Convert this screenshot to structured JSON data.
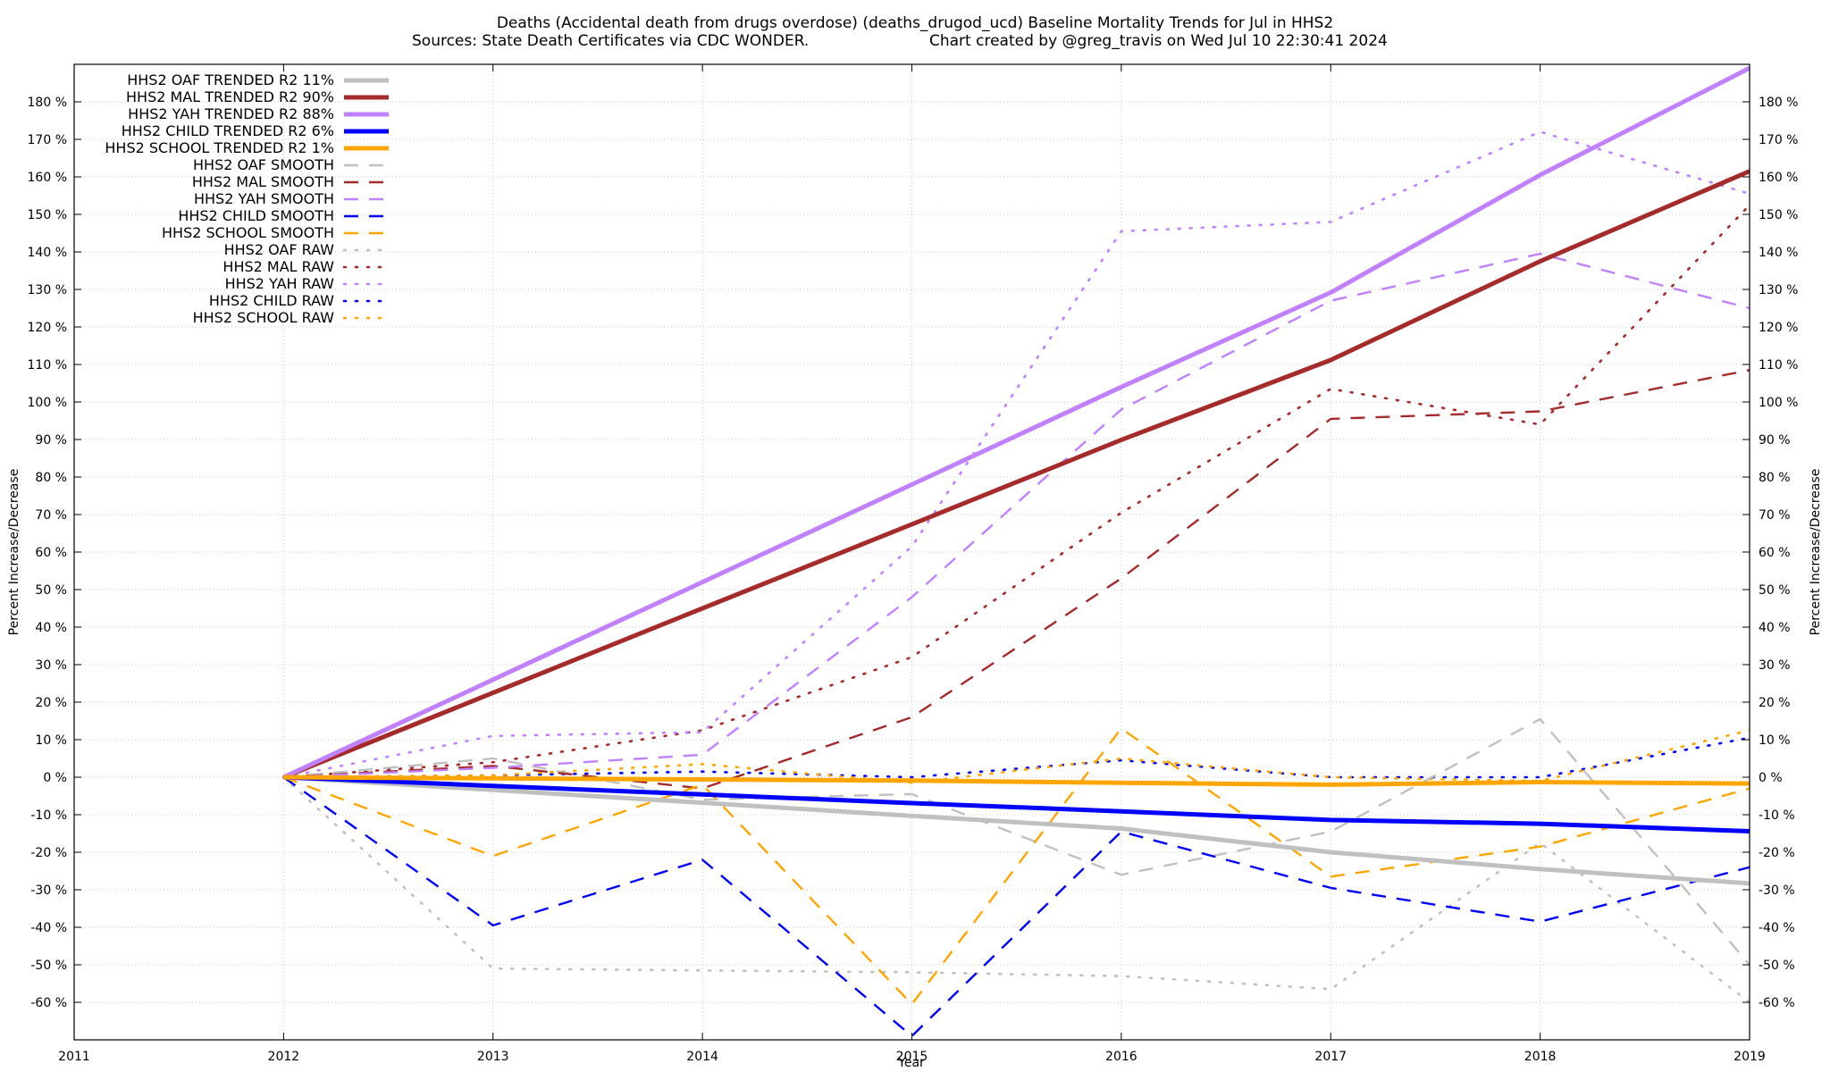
{
  "chart_data": {
    "type": "line",
    "title_line1": "Deaths (Accidental death from drugs overdose) (deaths_drugod_ucd)  Baseline Mortality Trends for Jul in HHS2",
    "title_line2_left": "Sources: State Death Certificates via CDC WONDER.",
    "title_line2_right": "Chart created by @greg_travis on Wed Jul 10 22:30:41 2024",
    "xlabel": "Year",
    "ylabel_left": "Percent Increase/Decrease",
    "ylabel_right": "Percent Increase/Decrease",
    "xlim": [
      2011,
      2019
    ],
    "ylim": [
      -70,
      190
    ],
    "x_ticks": [
      "2011",
      "2012",
      "2013",
      "2014",
      "2015",
      "2016",
      "2017",
      "2018",
      "2019"
    ],
    "y_ticks": [
      "180 %",
      "170 %",
      "160 %",
      "150 %",
      "140 %",
      "130 %",
      "120 %",
      "110 %",
      "100 %",
      "90 %",
      "80 %",
      "70 %",
      "60 %",
      "50 %",
      "40 %",
      "30 %",
      "20 %",
      "10 %",
      "0 %",
      "-10 %",
      "-20 %",
      "-30 %",
      "-40 %",
      "-50 %",
      "-60 %"
    ],
    "grid": true,
    "legend_position": "top-left",
    "x": [
      2012,
      2013,
      2014,
      2015,
      2016,
      2017,
      2018,
      2019
    ],
    "series": [
      {
        "name": "HHS2 OAF TRENDED R2  11%",
        "style": "trend",
        "color": "#c0c0c0",
        "values": [
          0,
          -3.4,
          -6.8,
          -10.3,
          -13.7,
          -20,
          -24.5,
          -28.3
        ]
      },
      {
        "name": "HHS2 MAL TRENDED R2  90%",
        "style": "trend",
        "color": "#a52a2a",
        "values": [
          0,
          22.5,
          45,
          67.4,
          89.9,
          111.2,
          137.5,
          161.5
        ]
      },
      {
        "name": "HHS2 YAH TRENDED R2  88%",
        "style": "trend",
        "color": "#c080ff",
        "values": [
          0,
          26,
          52,
          78,
          104,
          129.2,
          160.5,
          189
        ]
      },
      {
        "name": "HHS2 CHILD TRENDED R2   6%",
        "style": "trend",
        "color": "#0000ff",
        "values": [
          0,
          -2.3,
          -4.6,
          -6.9,
          -9.1,
          -11.4,
          -12.4,
          -14.4
        ]
      },
      {
        "name": "HHS2 SCHOOL TRENDED R2   1%",
        "style": "trend",
        "color": "#ffa500",
        "values": [
          0,
          -0.3,
          -0.6,
          -0.9,
          -1.5,
          -2,
          -1.3,
          -1.7
        ]
      },
      {
        "name": "HHS2 OAF SMOOTH",
        "style": "smooth",
        "color": "#c0c0c0",
        "values": [
          0,
          5,
          -6,
          -4.5,
          -26,
          -14.5,
          15.5,
          -50
        ]
      },
      {
        "name": "HHS2 MAL SMOOTH",
        "style": "smooth",
        "color": "#a52a2a",
        "values": [
          0,
          3,
          -3,
          16,
          53,
          95.5,
          97.5,
          108.5
        ]
      },
      {
        "name": "HHS2 YAH SMOOTH",
        "style": "smooth",
        "color": "#c080ff",
        "values": [
          0,
          2.5,
          6,
          48,
          98,
          127,
          139.5,
          125
        ]
      },
      {
        "name": "HHS2 CHILD SMOOTH",
        "style": "smooth",
        "color": "#0000ff",
        "values": [
          0,
          -39.5,
          -22,
          -69,
          -14.5,
          -29.5,
          -38.5,
          -24
        ]
      },
      {
        "name": "HHS2 SCHOOL SMOOTH",
        "style": "smooth",
        "color": "#ffa500",
        "values": [
          0,
          -21,
          -2,
          -60.5,
          13,
          -26.5,
          -18.5,
          -3
        ]
      },
      {
        "name": "HHS2 OAF RAW",
        "style": "raw",
        "color": "#c0c0c0",
        "values": [
          0,
          -51,
          -51.5,
          -52,
          -53,
          -56.5,
          -17.5,
          -60
        ]
      },
      {
        "name": "HHS2 MAL RAW",
        "style": "raw",
        "color": "#a52a2a",
        "values": [
          0,
          4,
          12.5,
          32,
          70.5,
          103.5,
          94,
          152.5
        ]
      },
      {
        "name": "HHS2 YAH RAW",
        "style": "raw",
        "color": "#c080ff",
        "values": [
          0,
          11,
          12,
          61.5,
          145.5,
          148,
          172,
          155.5
        ]
      },
      {
        "name": "HHS2 CHILD RAW",
        "style": "raw",
        "color": "#0000ff",
        "values": [
          0,
          0.5,
          1.5,
          0,
          4.5,
          0,
          0,
          10.5
        ]
      },
      {
        "name": "HHS2 SCHOOL RAW",
        "style": "raw",
        "color": "#ffa500",
        "values": [
          0,
          0.5,
          3.5,
          -1.5,
          5,
          0,
          -1,
          12.5
        ]
      }
    ]
  }
}
